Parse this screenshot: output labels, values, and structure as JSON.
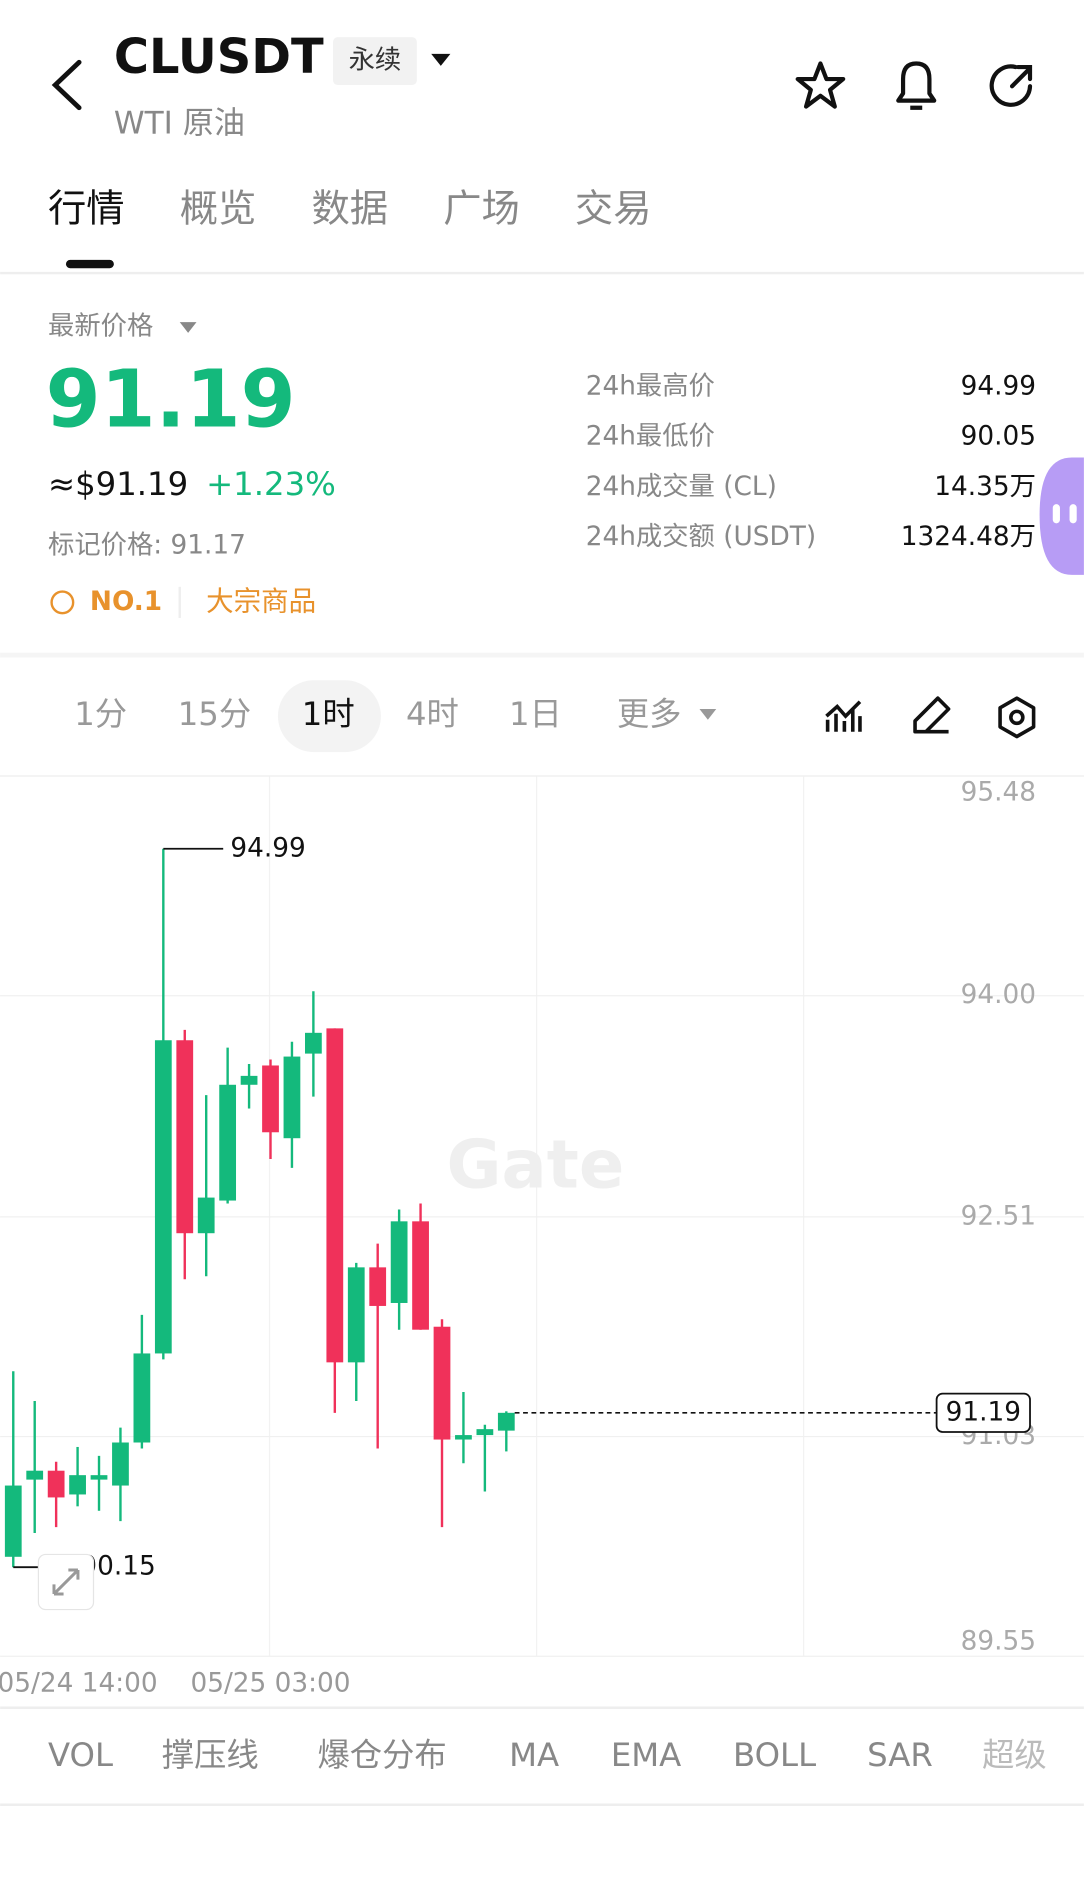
{
  "header": {
    "symbol": "CLUSDT",
    "badge": "永续",
    "subtitle": "WTI 原油"
  },
  "tabs": [
    "行情",
    "概览",
    "数据",
    "广场",
    "交易"
  ],
  "price": {
    "label": "最新价格",
    "last": "91.19",
    "usd": "≈$91.19",
    "change": "+1.23%",
    "mark": "标记价格: 91.17",
    "rank": "NO.1",
    "tag": "大宗商品"
  },
  "stats": [
    {
      "label": "24h最高价",
      "value": "94.99"
    },
    {
      "label": "24h最低价",
      "value": "90.05"
    },
    {
      "label": "24h成交量 (CL)",
      "value": "14.35万"
    },
    {
      "label": "24h成交额 (USDT)",
      "value": "1324.48万"
    }
  ],
  "intervals": [
    "1分",
    "15分",
    "1时",
    "4时",
    "1日",
    "更多"
  ],
  "indicators": [
    "VOL",
    "撑压线",
    "爆仓分布",
    "MA",
    "EMA",
    "BOLL",
    "SAR",
    "超级"
  ],
  "chart_data": {
    "type": "candlestick",
    "watermark": "Gate",
    "up_color": "#14b97c",
    "down_color": "#f0315a",
    "categories": [
      null,
      null,
      null,
      "05/24 14:00",
      null,
      null,
      null,
      null,
      null,
      null,
      null,
      null,
      "05/25 03:00",
      null,
      null,
      null,
      null,
      null,
      null,
      null,
      null,
      null,
      null,
      null
    ],
    "open": [
      90.22,
      90.74,
      90.8,
      90.64,
      90.74,
      90.7,
      90.99,
      91.59,
      93.7,
      92.4,
      92.62,
      93.4,
      93.53,
      93.04,
      93.61,
      93.78,
      91.53,
      92.17,
      91.93,
      92.48,
      91.77,
      91.01,
      91.04,
      91.07
    ],
    "high": [
      91.47,
      91.27,
      90.86,
      90.96,
      90.9,
      91.09,
      91.85,
      94.99,
      93.77,
      93.33,
      93.65,
      93.54,
      93.57,
      93.69,
      94.03,
      93.78,
      92.2,
      92.33,
      92.56,
      92.6,
      91.82,
      91.33,
      91.11,
      91.2
    ],
    "low": [
      90.15,
      90.38,
      90.42,
      90.56,
      90.53,
      90.46,
      90.95,
      91.55,
      92.09,
      92.11,
      92.6,
      93.24,
      92.9,
      92.84,
      93.32,
      91.19,
      91.27,
      90.95,
      91.75,
      91.75,
      90.42,
      90.85,
      90.66,
      90.93
    ],
    "close": [
      90.7,
      90.8,
      90.62,
      90.77,
      90.77,
      90.99,
      91.59,
      93.7,
      92.4,
      92.64,
      93.4,
      93.46,
      93.08,
      93.59,
      93.75,
      91.53,
      92.17,
      91.91,
      92.48,
      91.75,
      91.01,
      91.04,
      91.08,
      91.19
    ],
    "ylim": [
      89.55,
      95.48
    ],
    "yticks": [
      95.48,
      {
        "value": 94,
        "label": "94.00"
      },
      92.51,
      91.03,
      89.55
    ]
  }
}
